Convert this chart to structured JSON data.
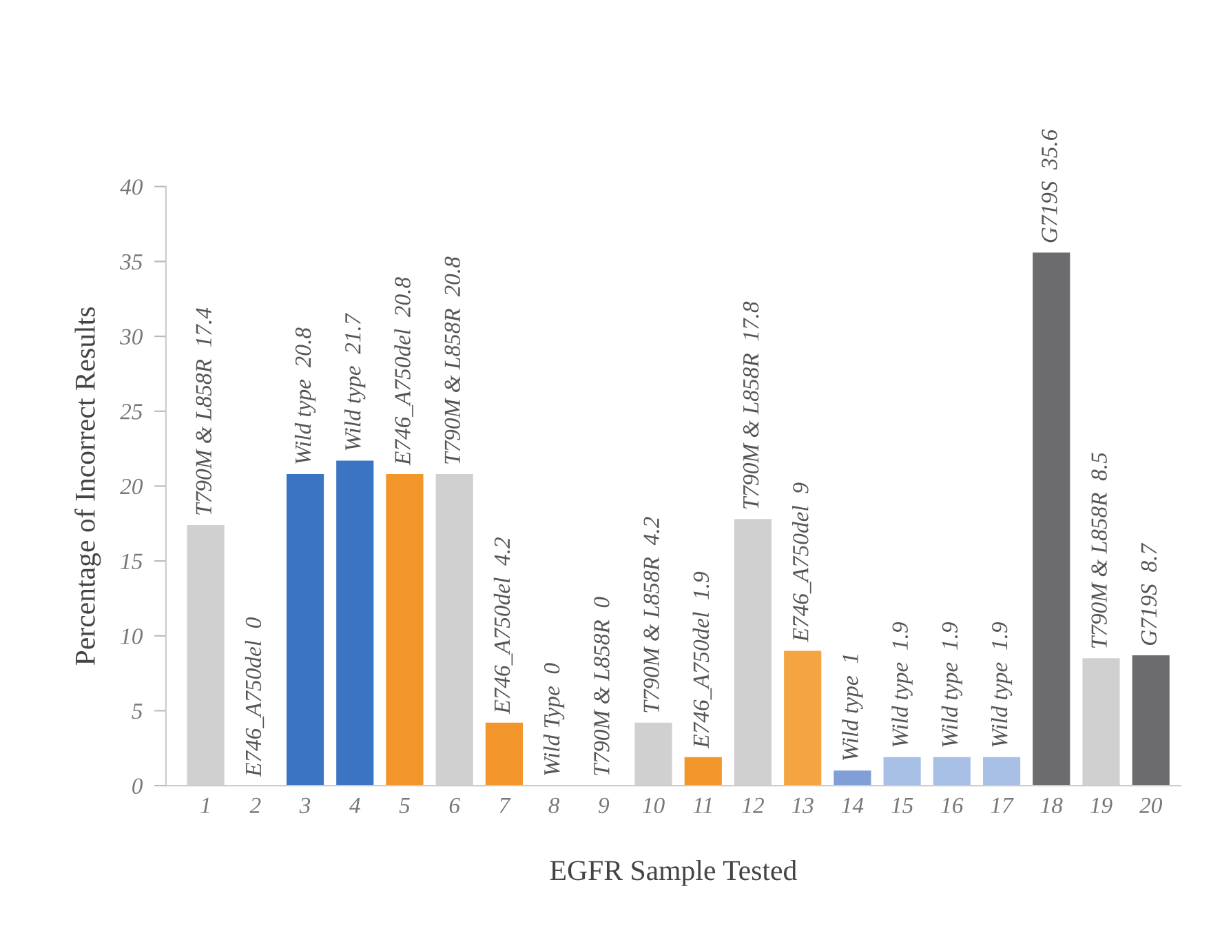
{
  "chart_data": {
    "type": "bar",
    "xlabel": "EGFR Sample Tested",
    "ylabel": "Percentage of Incorrect Results",
    "categories": [
      "1",
      "2",
      "3",
      "4",
      "5",
      "6",
      "7",
      "8",
      "9",
      "10",
      "11",
      "12",
      "13",
      "14",
      "15",
      "16",
      "17",
      "18",
      "19",
      "20"
    ],
    "values": [
      17.4,
      0,
      20.8,
      21.7,
      20.8,
      20.8,
      4.2,
      0,
      0,
      4.2,
      1.9,
      17.8,
      9,
      1,
      1.9,
      1.9,
      1.9,
      35.6,
      8.5,
      8.7
    ],
    "colors": [
      "#d0d0d1",
      "#d0d0d1",
      "#3b74c2",
      "#3b74c2",
      "#f2962b",
      "#d0d0d1",
      "#f2962b",
      "#d0d0d1",
      "#d0d0d1",
      "#d0d0d1",
      "#f2962b",
      "#d0d0d1",
      "#f4a440",
      "#7f9fd6",
      "#a9c0e6",
      "#a9c0e6",
      "#a9c0e6",
      "#6c6c6e",
      "#d0d0d1",
      "#6c6c6e"
    ],
    "value_labels": [
      "T790M & L858R  17.4",
      "E746_A750del  0",
      "Wild type  20.8",
      "Wild type  21.7",
      "E746_A750del  20.8",
      "T790M & L858R  20.8",
      "E746_A750del  4.2",
      "Wild Type  0",
      "T790M & L858R  0",
      "T790M & L858R  4.2",
      "E746_A750del  1.9",
      "T790M & L858R  17.8",
      "E746_A750del  9",
      "Wild type  1",
      "Wild type  1.9",
      "Wild type  1.9",
      "Wild type  1.9",
      "G719S  35.6",
      "T790M & L858R  8.5",
      "G719S  8.7"
    ],
    "ylim": [
      0,
      40
    ],
    "yticks": [
      0,
      5,
      10,
      15,
      20,
      25,
      30,
      35,
      40
    ],
    "grid": false,
    "legend": false
  }
}
